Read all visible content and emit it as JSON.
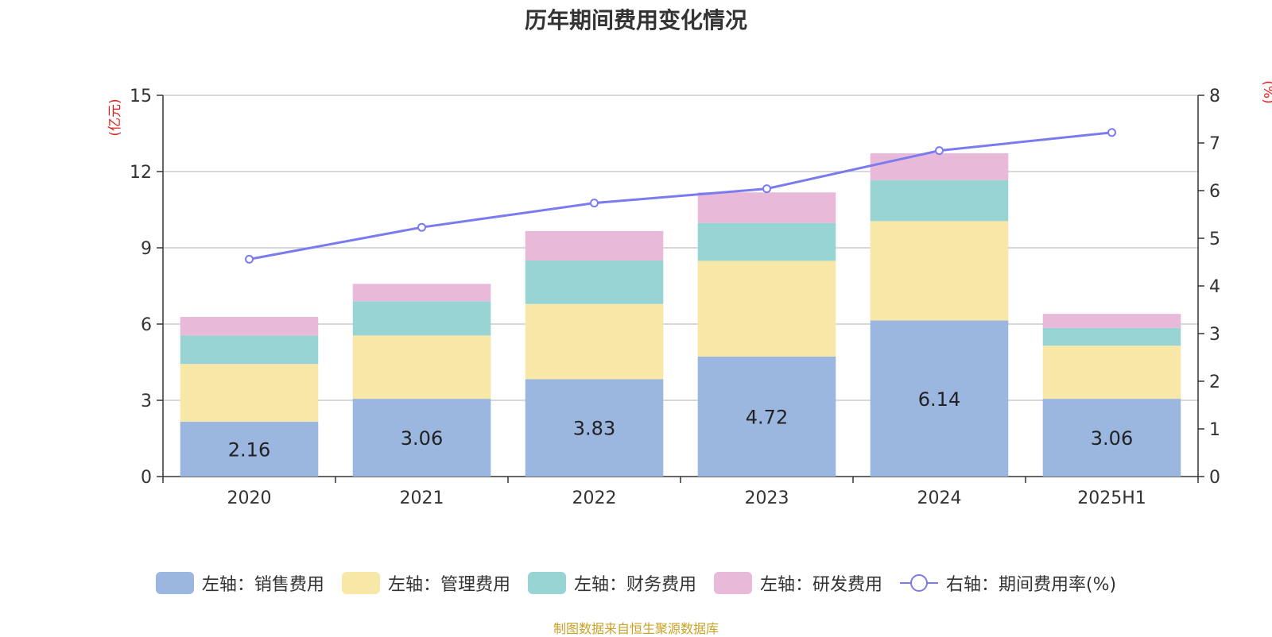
{
  "page": {
    "title": "历年期间费用变化情况",
    "footer": "制图数据来自恒生聚源数据库"
  },
  "chart_data": {
    "type": "bar",
    "stacked": true,
    "title": "历年期间费用变化情况",
    "categories": [
      "2020",
      "2021",
      "2022",
      "2023",
      "2024",
      "2025H1"
    ],
    "left_axis": {
      "label": "(亿元)",
      "ylim": [
        0,
        15
      ],
      "ticks": [
        0,
        3,
        6,
        9,
        12,
        15
      ],
      "tick_labels": [
        "0",
        "3",
        "6",
        "9",
        "12",
        "15"
      ]
    },
    "right_axis": {
      "label": "(%)",
      "ylim": [
        0,
        8
      ],
      "ticks": [
        0,
        1,
        2,
        3,
        4,
        5,
        6,
        7,
        8
      ],
      "tick_labels": [
        "0",
        "1",
        "2",
        "3",
        "4",
        "5",
        "6",
        "7",
        "8"
      ]
    },
    "grid": true,
    "legend_position": "bottom",
    "series": [
      {
        "name": "左轴：销售费用",
        "axis": "left",
        "kind": "bar",
        "color": "#9bb7e0",
        "values": [
          2.16,
          3.06,
          3.83,
          4.72,
          6.14,
          3.06
        ],
        "data_labels": [
          "2.16",
          "3.06",
          "3.83",
          "4.72",
          "6.14",
          "3.06"
        ]
      },
      {
        "name": "左轴：管理费用",
        "axis": "left",
        "kind": "bar",
        "color": "#f7e8a8",
        "values": [
          2.27,
          2.49,
          2.96,
          3.77,
          3.91,
          2.09
        ]
      },
      {
        "name": "左轴：财务费用",
        "axis": "left",
        "kind": "bar",
        "color": "#98d4d4",
        "values": [
          1.12,
          1.35,
          1.71,
          1.49,
          1.61,
          0.7
        ]
      },
      {
        "name": "左轴：研发费用",
        "axis": "left",
        "kind": "bar",
        "color": "#e8b9d9",
        "values": [
          0.73,
          0.68,
          1.16,
          1.2,
          1.06,
          0.55
        ]
      },
      {
        "name": "右轴：期间费用率(%)",
        "axis": "right",
        "kind": "line",
        "color": "#7b7bf0",
        "values": [
          4.56,
          5.23,
          5.74,
          6.04,
          6.84,
          7.22
        ]
      }
    ]
  }
}
